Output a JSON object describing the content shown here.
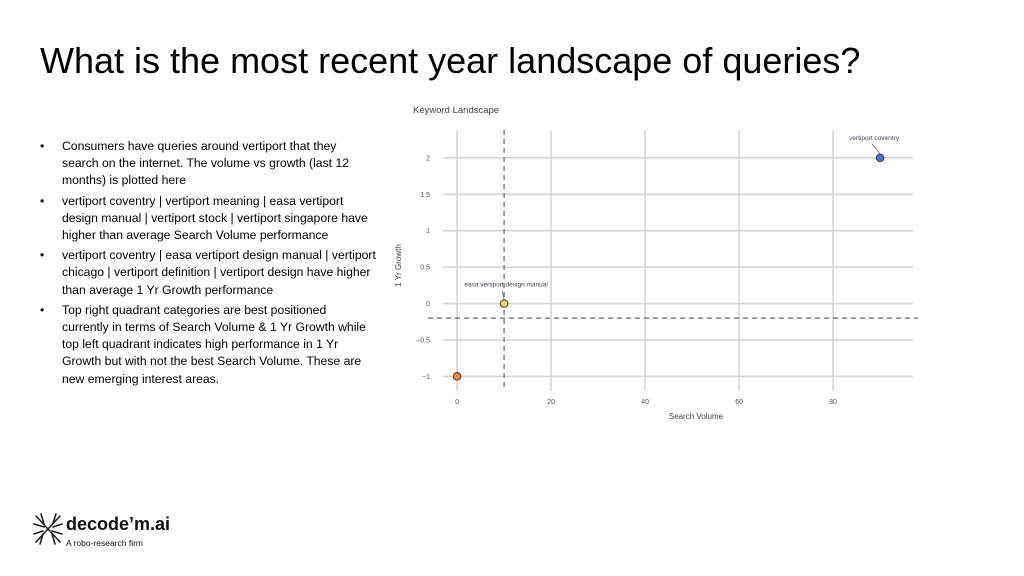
{
  "slide": {
    "title": "What is the most recent year landscape of queries?"
  },
  "bullets": [
    "Consumers have queries around vertiport that they search on the internet. The volume vs growth (last 12 months) is plotted here",
    "vertiport coventry | vertiport meaning | easa vertiport design manual | vertiport stock | vertiport singapore have higher than average Search Volume performance",
    "vertiport coventry | easa vertiport design manual | vertiport chicago | vertiport definition | vertiport design have higher than average 1 Yr Growth performance",
    "Top right quadrant categories are best positioned currently in terms of Search Volume & 1 Yr Growth while top left quadrant indicates high performance in 1 Yr Growth but with not the best Search Volume. These are new emerging interest areas."
  ],
  "logo": {
    "name": "decode’m.ai",
    "tagline": "A robo-research firm"
  },
  "chart_data": {
    "type": "scatter",
    "title": "Keyword Landscape",
    "xlabel": "Search Volume",
    "ylabel": "1 Yr Growth",
    "xlim": [
      -3,
      97
    ],
    "ylim": [
      -1.2,
      2.3
    ],
    "xticks": [
      0,
      20,
      40,
      60,
      80
    ],
    "yticks": [
      2,
      1.5,
      1,
      0.5,
      0,
      -0.5,
      -1
    ],
    "ytick_labels": [
      "2",
      "1.5",
      "1",
      "0.5",
      "0",
      "−0.5",
      "−1"
    ],
    "grid": true,
    "reference_lines": {
      "x": 10,
      "y": -0.2
    },
    "points": [
      {
        "x": 90,
        "y": 2,
        "label": "vertiport coventry",
        "color": "#4f6fd8"
      },
      {
        "x": 10,
        "y": 0,
        "label": "easa vertiport design manual",
        "color": "#e8d26a"
      },
      {
        "x": 0,
        "y": -1,
        "label": "",
        "color": "#ee8a3c"
      }
    ]
  }
}
